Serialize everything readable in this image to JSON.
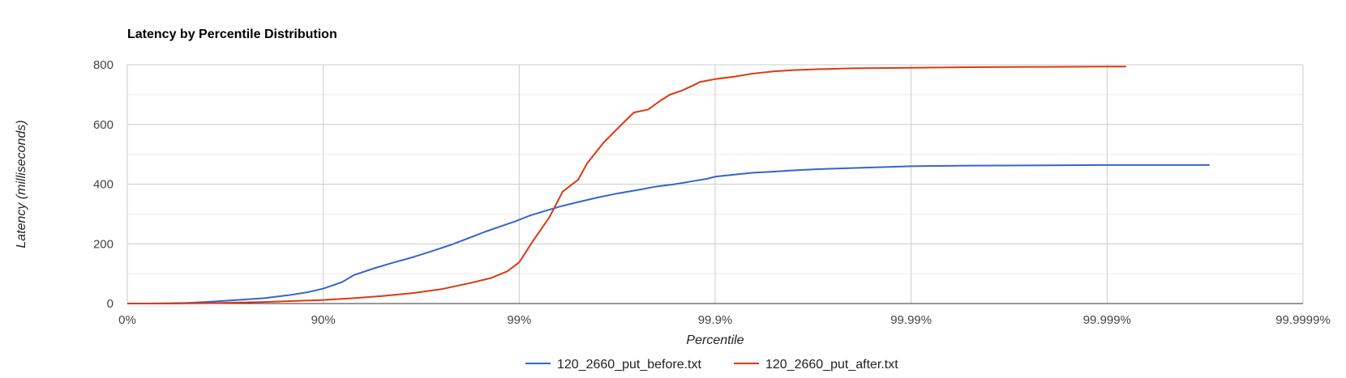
{
  "chart_data": {
    "type": "line",
    "title": "Latency by Percentile Distribution",
    "xlabel": "Percentile",
    "ylabel": "Latency (milliseconds)",
    "x_scale": "log-nines",
    "x_ticks": [
      "0%",
      "90%",
      "99%",
      "99.9%",
      "99.99%",
      "99.999%",
      "99.9999%"
    ],
    "ylim": [
      0,
      800
    ],
    "y_ticks": [
      "0",
      "200",
      "400",
      "600",
      "800"
    ],
    "grid": true,
    "legend_position": "bottom",
    "series": [
      {
        "name": "120_2660_put_before.txt",
        "color": "#3366cc",
        "points": [
          [
            0,
            0
          ],
          [
            20,
            0
          ],
          [
            40,
            1
          ],
          [
            50,
            2
          ],
          [
            60,
            5
          ],
          [
            70,
            10
          ],
          [
            80,
            18
          ],
          [
            85,
            28
          ],
          [
            88,
            38
          ],
          [
            90,
            50
          ],
          [
            92,
            72
          ],
          [
            93,
            95
          ],
          [
            94.5,
            118
          ],
          [
            95.5,
            135
          ],
          [
            96.5,
            155
          ],
          [
            97.2,
            175
          ],
          [
            97.8,
            198
          ],
          [
            98.2,
            220
          ],
          [
            98.5,
            240
          ],
          [
            98.75,
            258
          ],
          [
            98.95,
            275
          ],
          [
            99.12,
            295
          ],
          [
            99.26,
            310
          ],
          [
            99.38,
            325
          ],
          [
            99.5,
            340
          ],
          [
            99.6,
            355
          ],
          [
            99.68,
            368
          ],
          [
            99.75,
            380
          ],
          [
            99.8,
            392
          ],
          [
            99.84,
            400
          ],
          [
            99.87,
            410
          ],
          [
            99.89,
            418
          ],
          [
            99.9,
            425
          ],
          [
            99.92,
            432
          ],
          [
            99.935,
            438
          ],
          [
            99.95,
            442
          ],
          [
            99.96,
            446
          ],
          [
            99.97,
            450
          ],
          [
            99.98,
            454
          ],
          [
            99.99,
            460
          ],
          [
            99.995,
            462
          ],
          [
            99.998,
            463
          ],
          [
            99.999,
            464
          ],
          [
            99.9997,
            464
          ]
        ]
      },
      {
        "name": "120_2660_put_after.txt",
        "color": "#dc3912",
        "points": [
          [
            0,
            0
          ],
          [
            40,
            0
          ],
          [
            60,
            1
          ],
          [
            80,
            5
          ],
          [
            88,
            10
          ],
          [
            90,
            12
          ],
          [
            93,
            18
          ],
          [
            95,
            25
          ],
          [
            96.5,
            35
          ],
          [
            97.5,
            48
          ],
          [
            98.2,
            68
          ],
          [
            98.6,
            85
          ],
          [
            98.85,
            108
          ],
          [
            99.0,
            138
          ],
          [
            99.15,
            210
          ],
          [
            99.3,
            290
          ],
          [
            99.4,
            375
          ],
          [
            99.5,
            415
          ],
          [
            99.55,
            470
          ],
          [
            99.63,
            540
          ],
          [
            99.7,
            600
          ],
          [
            99.74,
            640
          ],
          [
            99.78,
            650
          ],
          [
            99.81,
            680
          ],
          [
            99.83,
            700
          ],
          [
            99.85,
            712
          ],
          [
            99.87,
            730
          ],
          [
            99.88,
            742
          ],
          [
            99.9,
            752
          ],
          [
            99.92,
            760
          ],
          [
            99.935,
            770
          ],
          [
            99.95,
            778
          ],
          [
            99.96,
            782
          ],
          [
            99.97,
            785
          ],
          [
            99.98,
            788
          ],
          [
            99.99,
            790
          ],
          [
            99.995,
            792
          ],
          [
            99.998,
            793
          ],
          [
            99.999,
            794
          ],
          [
            99.9992,
            794
          ]
        ]
      }
    ]
  }
}
